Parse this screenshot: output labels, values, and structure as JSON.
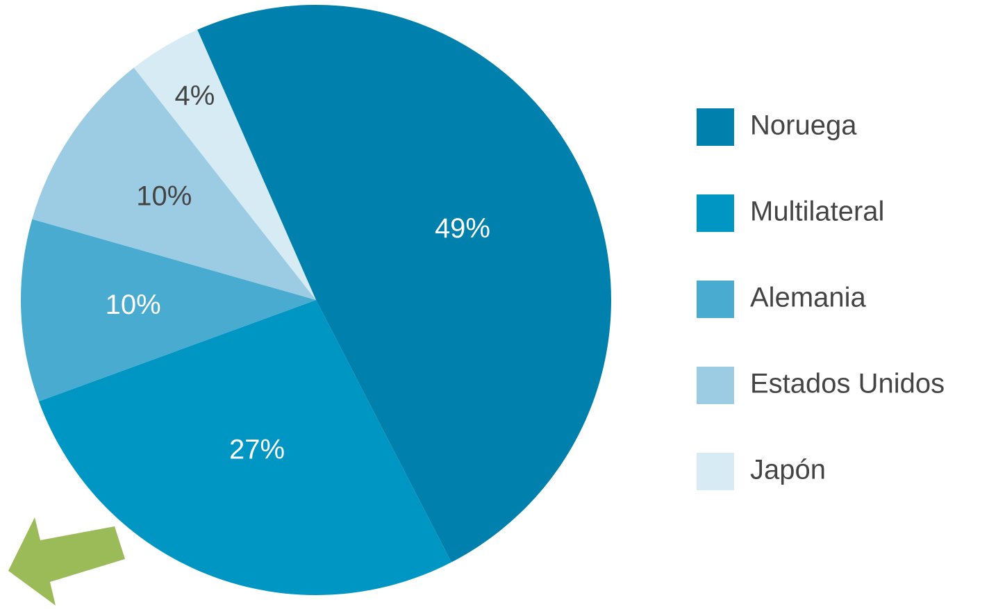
{
  "chart_data": {
    "type": "pie",
    "categories": [
      "Noruega",
      "Multilateral",
      "Alemania",
      "Estados Unidos",
      "Japón"
    ],
    "values": [
      49,
      27,
      10,
      10,
      4
    ],
    "value_labels": [
      "49%",
      "27%",
      "10%",
      "10%",
      "4%"
    ],
    "colors": [
      "#0080ad",
      "#0096c3",
      "#4aabd1",
      "#9ccce3",
      "#d7ebf4"
    ],
    "legend": "right"
  }
}
